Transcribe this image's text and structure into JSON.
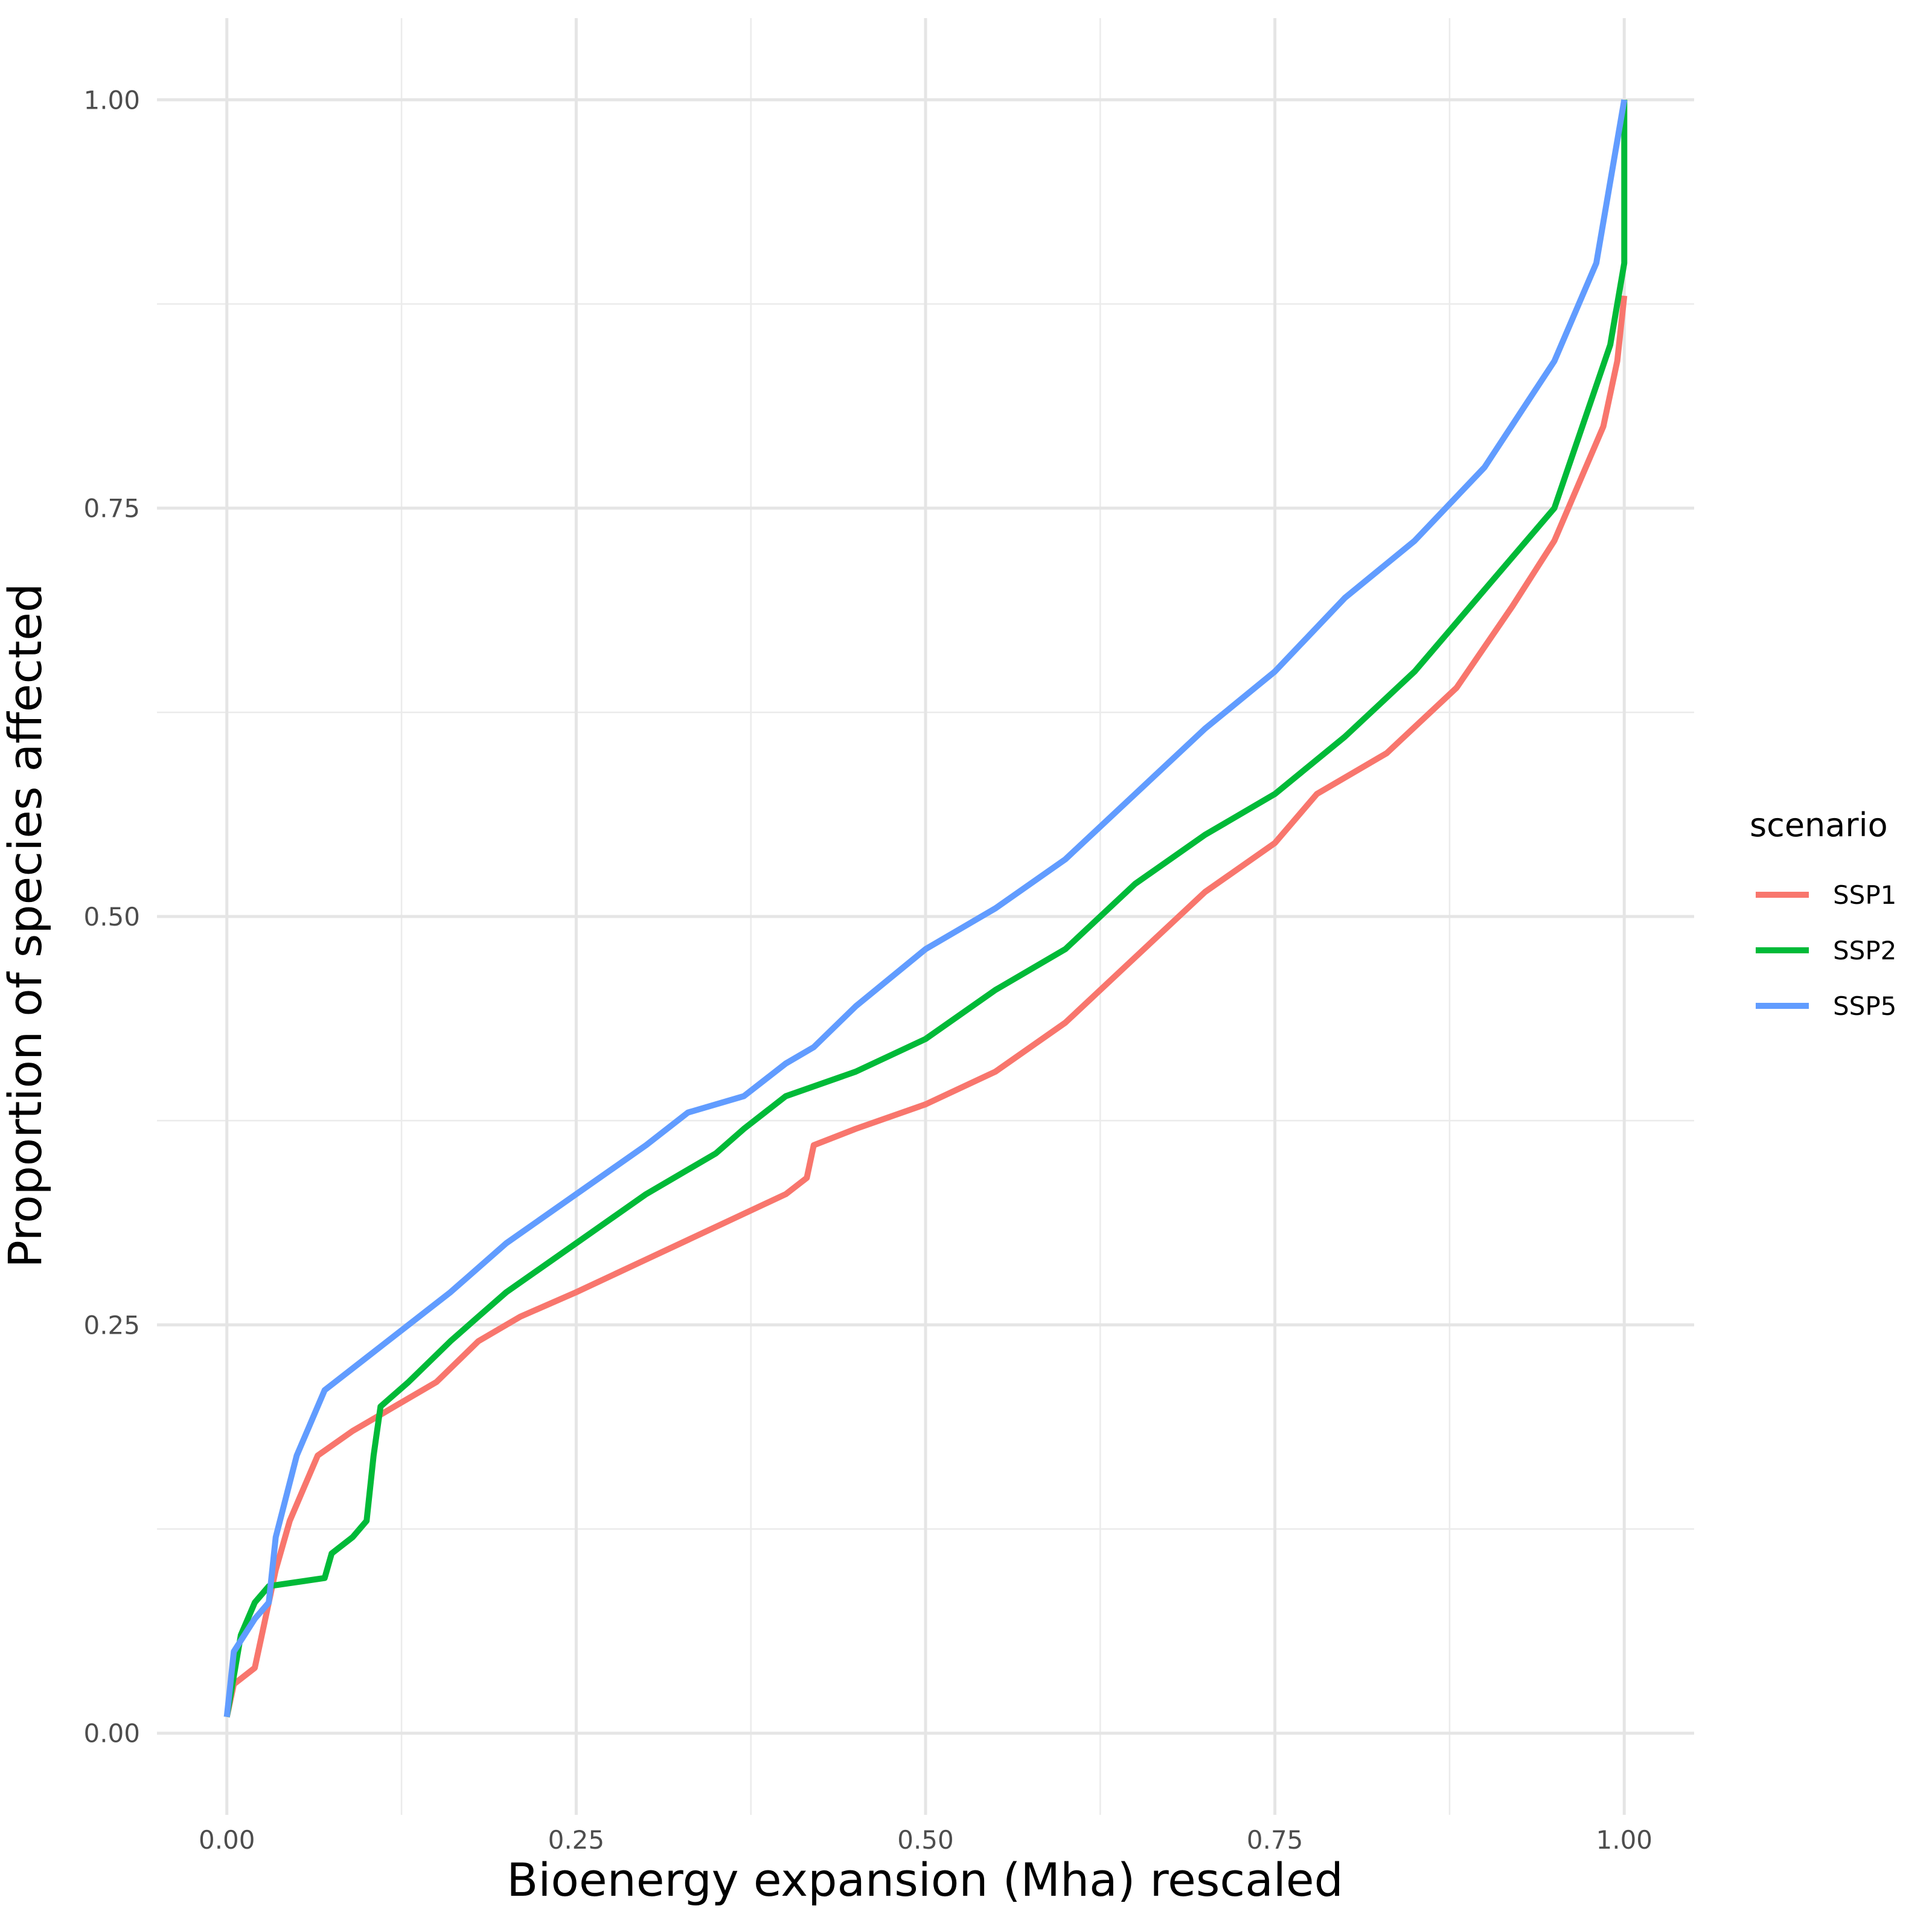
{
  "chart_data": {
    "type": "line",
    "xlabel": "Bioenergy expansion (Mha) rescaled",
    "ylabel": "Proportion of species affected",
    "xlim": [
      -0.05,
      1.05
    ],
    "ylim": [
      -0.05,
      1.05
    ],
    "x_ticks": [
      "0.00",
      "0.25",
      "0.50",
      "0.75",
      "1.00"
    ],
    "y_ticks": [
      "0.00",
      "0.25",
      "0.50",
      "0.75",
      "1.00"
    ],
    "grid": true,
    "legend": {
      "title": "scenario",
      "position": "right"
    },
    "series": [
      {
        "name": "SSP1",
        "color": "#F8766D",
        "points": [
          [
            0,
            0.01
          ],
          [
            0.005,
            0.03
          ],
          [
            0.02,
            0.04
          ],
          [
            0.025,
            0.06
          ],
          [
            0.03,
            0.08
          ],
          [
            0.035,
            0.1
          ],
          [
            0.045,
            0.13
          ],
          [
            0.055,
            0.15
          ],
          [
            0.065,
            0.17
          ],
          [
            0.09,
            0.185
          ],
          [
            0.11,
            0.195
          ],
          [
            0.12,
            0.2
          ],
          [
            0.15,
            0.215
          ],
          [
            0.18,
            0.24
          ],
          [
            0.21,
            0.255
          ],
          [
            0.25,
            0.27
          ],
          [
            0.3,
            0.29
          ],
          [
            0.35,
            0.31
          ],
          [
            0.4,
            0.33
          ],
          [
            0.415,
            0.34
          ],
          [
            0.42,
            0.36
          ],
          [
            0.45,
            0.37
          ],
          [
            0.5,
            0.385
          ],
          [
            0.55,
            0.405
          ],
          [
            0.6,
            0.435
          ],
          [
            0.65,
            0.475
          ],
          [
            0.7,
            0.515
          ],
          [
            0.75,
            0.545
          ],
          [
            0.78,
            0.575
          ],
          [
            0.83,
            0.6
          ],
          [
            0.88,
            0.64
          ],
          [
            0.92,
            0.69
          ],
          [
            0.95,
            0.73
          ],
          [
            0.97,
            0.77
          ],
          [
            0.985,
            0.8
          ],
          [
            0.995,
            0.84
          ],
          [
            1.0,
            0.88
          ]
        ]
      },
      {
        "name": "SSP2",
        "color": "#00BA38",
        "points": [
          [
            0,
            0.01
          ],
          [
            0.01,
            0.06
          ],
          [
            0.02,
            0.08
          ],
          [
            0.03,
            0.09
          ],
          [
            0.07,
            0.095
          ],
          [
            0.075,
            0.11
          ],
          [
            0.09,
            0.12
          ],
          [
            0.1,
            0.13
          ],
          [
            0.105,
            0.17
          ],
          [
            0.11,
            0.2
          ],
          [
            0.13,
            0.215
          ],
          [
            0.16,
            0.24
          ],
          [
            0.18,
            0.255
          ],
          [
            0.2,
            0.27
          ],
          [
            0.25,
            0.3
          ],
          [
            0.3,
            0.33
          ],
          [
            0.35,
            0.355
          ],
          [
            0.37,
            0.37
          ],
          [
            0.4,
            0.39
          ],
          [
            0.45,
            0.405
          ],
          [
            0.5,
            0.425
          ],
          [
            0.55,
            0.455
          ],
          [
            0.6,
            0.48
          ],
          [
            0.65,
            0.52
          ],
          [
            0.7,
            0.55
          ],
          [
            0.75,
            0.575
          ],
          [
            0.8,
            0.61
          ],
          [
            0.85,
            0.65
          ],
          [
            0.9,
            0.7
          ],
          [
            0.95,
            0.75
          ],
          [
            0.97,
            0.8
          ],
          [
            0.99,
            0.85
          ],
          [
            1.0,
            0.9
          ],
          [
            1.0,
            1.0
          ]
        ]
      },
      {
        "name": "SSP5",
        "color": "#619CFF",
        "points": [
          [
            0,
            0.01
          ],
          [
            0.005,
            0.05
          ],
          [
            0.02,
            0.07
          ],
          [
            0.03,
            0.08
          ],
          [
            0.035,
            0.12
          ],
          [
            0.05,
            0.17
          ],
          [
            0.07,
            0.21
          ],
          [
            0.1,
            0.23
          ],
          [
            0.13,
            0.25
          ],
          [
            0.16,
            0.27
          ],
          [
            0.2,
            0.3
          ],
          [
            0.25,
            0.33
          ],
          [
            0.3,
            0.36
          ],
          [
            0.33,
            0.38
          ],
          [
            0.37,
            0.39
          ],
          [
            0.4,
            0.41
          ],
          [
            0.42,
            0.42
          ],
          [
            0.45,
            0.445
          ],
          [
            0.5,
            0.48
          ],
          [
            0.55,
            0.505
          ],
          [
            0.6,
            0.535
          ],
          [
            0.65,
            0.575
          ],
          [
            0.7,
            0.615
          ],
          [
            0.75,
            0.65
          ],
          [
            0.8,
            0.695
          ],
          [
            0.85,
            0.73
          ],
          [
            0.9,
            0.775
          ],
          [
            0.95,
            0.84
          ],
          [
            0.98,
            0.9
          ],
          [
            1.0,
            1.0
          ]
        ]
      }
    ]
  }
}
